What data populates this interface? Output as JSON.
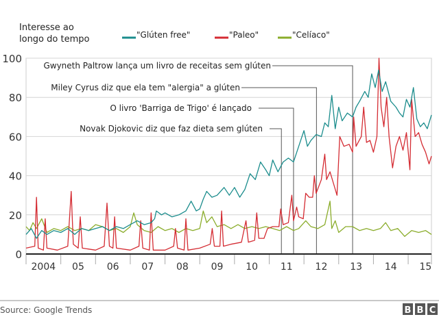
{
  "chart_data": {
    "type": "line",
    "title": "Interesse ao longo do tempo",
    "title_lines": [
      "Interesse ao",
      "longo do tempo"
    ],
    "xlabel": "",
    "ylabel": "",
    "ylim": [
      0,
      100
    ],
    "xlim": [
      2004,
      2015.67
    ],
    "yticks": [
      0,
      20,
      40,
      60,
      80,
      100
    ],
    "xticks": [
      2004,
      2005,
      2006,
      2007,
      2008,
      2009,
      2010,
      2011,
      2012,
      2013,
      2014,
      2015
    ],
    "xtick_labels": [
      "2004",
      "05",
      "06",
      "07",
      "08",
      "09",
      "10",
      "11",
      "12",
      "13",
      "14",
      "15"
    ],
    "grid": true,
    "legend_position": "top",
    "series": [
      {
        "name": "\"Glúten free\"",
        "color": "#1a8c8c",
        "points": [
          [
            2004,
            10
          ],
          [
            2004.15,
            13
          ],
          [
            2004.3,
            8
          ],
          [
            2004.45,
            12
          ],
          [
            2004.6,
            10
          ],
          [
            2004.8,
            12
          ],
          [
            2005,
            11
          ],
          [
            2005.2,
            13
          ],
          [
            2005.4,
            10
          ],
          [
            2005.6,
            13
          ],
          [
            2005.8,
            12
          ],
          [
            2006,
            13
          ],
          [
            2006.2,
            14
          ],
          [
            2006.4,
            12
          ],
          [
            2006.6,
            14
          ],
          [
            2006.8,
            13
          ],
          [
            2007,
            15
          ],
          [
            2007.2,
            17
          ],
          [
            2007.4,
            15
          ],
          [
            2007.6,
            16
          ],
          [
            2007.7,
            18
          ],
          [
            2007.75,
            22
          ],
          [
            2007.9,
            20
          ],
          [
            2008,
            21
          ],
          [
            2008.2,
            19
          ],
          [
            2008.4,
            20
          ],
          [
            2008.6,
            22
          ],
          [
            2008.75,
            27
          ],
          [
            2008.9,
            22
          ],
          [
            2009,
            23
          ],
          [
            2009.1,
            28
          ],
          [
            2009.2,
            32
          ],
          [
            2009.35,
            29
          ],
          [
            2009.5,
            30
          ],
          [
            2009.7,
            34
          ],
          [
            2009.85,
            30
          ],
          [
            2010,
            34
          ],
          [
            2010.15,
            29
          ],
          [
            2010.3,
            33
          ],
          [
            2010.45,
            41
          ],
          [
            2010.6,
            38
          ],
          [
            2010.75,
            47
          ],
          [
            2010.9,
            43
          ],
          [
            2011,
            40
          ],
          [
            2011.1,
            48
          ],
          [
            2011.25,
            42
          ],
          [
            2011.4,
            47
          ],
          [
            2011.55,
            49
          ],
          [
            2011.7,
            47
          ],
          [
            2011.85,
            55
          ],
          [
            2012,
            63
          ],
          [
            2012.1,
            55
          ],
          [
            2012.2,
            58
          ],
          [
            2012.35,
            61
          ],
          [
            2012.5,
            60
          ],
          [
            2012.6,
            67
          ],
          [
            2012.7,
            65
          ],
          [
            2012.8,
            81
          ],
          [
            2012.9,
            64
          ],
          [
            2013,
            75
          ],
          [
            2013.1,
            68
          ],
          [
            2013.25,
            72
          ],
          [
            2013.4,
            70
          ],
          [
            2013.5,
            75
          ],
          [
            2013.6,
            78
          ],
          [
            2013.75,
            83
          ],
          [
            2013.85,
            80
          ],
          [
            2013.95,
            92
          ],
          [
            2014.05,
            85
          ],
          [
            2014.15,
            94
          ],
          [
            2014.25,
            83
          ],
          [
            2014.35,
            88
          ],
          [
            2014.5,
            78
          ],
          [
            2014.65,
            75
          ],
          [
            2014.75,
            72
          ],
          [
            2014.85,
            70
          ],
          [
            2014.95,
            79
          ],
          [
            2015.05,
            75
          ],
          [
            2015.15,
            85
          ],
          [
            2015.25,
            69
          ],
          [
            2015.35,
            65
          ],
          [
            2015.45,
            67
          ],
          [
            2015.55,
            64
          ],
          [
            2015.67,
            71
          ]
        ]
      },
      {
        "name": "\"Paleo\"",
        "color": "#d42b32",
        "points": [
          [
            2004,
            3
          ],
          [
            2004.25,
            4
          ],
          [
            2004.3,
            29
          ],
          [
            2004.35,
            3
          ],
          [
            2004.5,
            2
          ],
          [
            2004.55,
            18
          ],
          [
            2004.6,
            3
          ],
          [
            2004.9,
            2
          ],
          [
            2005.2,
            4
          ],
          [
            2005.3,
            32
          ],
          [
            2005.36,
            5
          ],
          [
            2005.5,
            3
          ],
          [
            2005.56,
            19
          ],
          [
            2005.62,
            3
          ],
          [
            2006,
            2
          ],
          [
            2006.25,
            4
          ],
          [
            2006.33,
            26
          ],
          [
            2006.4,
            4
          ],
          [
            2006.5,
            3
          ],
          [
            2006.55,
            19
          ],
          [
            2006.6,
            3
          ],
          [
            2007,
            2
          ],
          [
            2007.25,
            4
          ],
          [
            2007.3,
            17
          ],
          [
            2007.36,
            3
          ],
          [
            2007.55,
            2
          ],
          [
            2007.6,
            21
          ],
          [
            2007.66,
            2
          ],
          [
            2008,
            2
          ],
          [
            2008.25,
            4
          ],
          [
            2008.3,
            13
          ],
          [
            2008.36,
            3
          ],
          [
            2008.55,
            2
          ],
          [
            2008.6,
            18
          ],
          [
            2008.66,
            2
          ],
          [
            2009,
            3
          ],
          [
            2009.3,
            5
          ],
          [
            2009.36,
            13
          ],
          [
            2009.42,
            4
          ],
          [
            2009.58,
            4
          ],
          [
            2009.63,
            22
          ],
          [
            2009.68,
            4
          ],
          [
            2009.9,
            5
          ],
          [
            2010.2,
            6
          ],
          [
            2010.33,
            17
          ],
          [
            2010.4,
            6
          ],
          [
            2010.58,
            7
          ],
          [
            2010.64,
            21
          ],
          [
            2010.7,
            8
          ],
          [
            2010.85,
            8
          ],
          [
            2010.95,
            13
          ],
          [
            2011.1,
            14
          ],
          [
            2011.28,
            14
          ],
          [
            2011.33,
            23
          ],
          [
            2011.4,
            15
          ],
          [
            2011.55,
            16
          ],
          [
            2011.65,
            30
          ],
          [
            2011.7,
            17
          ],
          [
            2011.79,
            24
          ],
          [
            2011.85,
            19
          ],
          [
            2011.98,
            18
          ],
          [
            2012.05,
            31
          ],
          [
            2012.15,
            29
          ],
          [
            2012.25,
            29
          ],
          [
            2012.3,
            40
          ],
          [
            2012.35,
            31
          ],
          [
            2012.5,
            38
          ],
          [
            2012.6,
            51
          ],
          [
            2012.65,
            38
          ],
          [
            2012.75,
            42
          ],
          [
            2012.85,
            36
          ],
          [
            2012.95,
            30
          ],
          [
            2013.03,
            60
          ],
          [
            2013.15,
            55
          ],
          [
            2013.3,
            56
          ],
          [
            2013.4,
            52
          ],
          [
            2013.43,
            70
          ],
          [
            2013.5,
            55
          ],
          [
            2013.65,
            60
          ],
          [
            2013.72,
            75
          ],
          [
            2013.8,
            57
          ],
          [
            2013.9,
            58
          ],
          [
            2014.0,
            52
          ],
          [
            2014.1,
            60
          ],
          [
            2014.16,
            100
          ],
          [
            2014.22,
            75
          ],
          [
            2014.3,
            65
          ],
          [
            2014.38,
            80
          ],
          [
            2014.45,
            60
          ],
          [
            2014.55,
            44
          ],
          [
            2014.65,
            55
          ],
          [
            2014.75,
            60
          ],
          [
            2014.85,
            53
          ],
          [
            2014.95,
            62
          ],
          [
            2015.05,
            43
          ],
          [
            2015.1,
            79
          ],
          [
            2015.2,
            60
          ],
          [
            2015.3,
            62
          ],
          [
            2015.4,
            56
          ],
          [
            2015.5,
            52
          ],
          [
            2015.6,
            46
          ],
          [
            2015.67,
            50
          ]
        ]
      },
      {
        "name": "\"Celíaco\"",
        "color": "#8aac2a",
        "points": [
          [
            2004,
            14
          ],
          [
            2004.1,
            12
          ],
          [
            2004.2,
            16
          ],
          [
            2004.3,
            13
          ],
          [
            2004.45,
            18
          ],
          [
            2004.6,
            11
          ],
          [
            2004.8,
            13
          ],
          [
            2005,
            12
          ],
          [
            2005.2,
            14
          ],
          [
            2005.4,
            12
          ],
          [
            2005.6,
            13
          ],
          [
            2005.8,
            12
          ],
          [
            2006,
            15
          ],
          [
            2006.2,
            14
          ],
          [
            2006.4,
            12
          ],
          [
            2006.6,
            13
          ],
          [
            2006.8,
            11
          ],
          [
            2007,
            14
          ],
          [
            2007.1,
            21
          ],
          [
            2007.2,
            15
          ],
          [
            2007.4,
            12
          ],
          [
            2007.6,
            11
          ],
          [
            2007.8,
            14
          ],
          [
            2008,
            12
          ],
          [
            2008.2,
            13
          ],
          [
            2008.4,
            11
          ],
          [
            2008.6,
            13
          ],
          [
            2008.8,
            12
          ],
          [
            2009,
            13
          ],
          [
            2009.1,
            22
          ],
          [
            2009.2,
            16
          ],
          [
            2009.35,
            19
          ],
          [
            2009.5,
            14
          ],
          [
            2009.7,
            15
          ],
          [
            2009.9,
            13
          ],
          [
            2010.1,
            15
          ],
          [
            2010.3,
            13
          ],
          [
            2010.5,
            14
          ],
          [
            2010.7,
            13
          ],
          [
            2010.9,
            14
          ],
          [
            2011.1,
            13
          ],
          [
            2011.3,
            12
          ],
          [
            2011.5,
            14
          ],
          [
            2011.7,
            12
          ],
          [
            2011.85,
            13
          ],
          [
            2012.05,
            17
          ],
          [
            2012.2,
            14
          ],
          [
            2012.4,
            13
          ],
          [
            2012.6,
            15
          ],
          [
            2012.75,
            27
          ],
          [
            2012.8,
            13
          ],
          [
            2012.9,
            17
          ],
          [
            2013,
            11
          ],
          [
            2013.2,
            14
          ],
          [
            2013.4,
            14
          ],
          [
            2013.6,
            12
          ],
          [
            2013.8,
            13
          ],
          [
            2014.0,
            12
          ],
          [
            2014.2,
            13
          ],
          [
            2014.35,
            16
          ],
          [
            2014.5,
            12
          ],
          [
            2014.7,
            13
          ],
          [
            2014.9,
            9
          ],
          [
            2015.1,
            12
          ],
          [
            2015.3,
            11
          ],
          [
            2015.5,
            12
          ],
          [
            2015.67,
            10
          ]
        ]
      }
    ],
    "annotations": [
      {
        "text": "Gwyneth Paltrow lança um livro de receitas sem glúten",
        "x": 2013.4
      },
      {
        "text": "Miley Cyrus diz que ela tem \"alergia\" a glúten",
        "x": 2012.36
      },
      {
        "text": "O livro 'Barriga de Trigo' é lançado",
        "x": 2011.7
      },
      {
        "text": "Novak Djokovic diz que faz dieta sem glúten",
        "x": 2011.35
      }
    ]
  },
  "footer": {
    "source": "Source: Google Trends",
    "logo": "BBC"
  }
}
